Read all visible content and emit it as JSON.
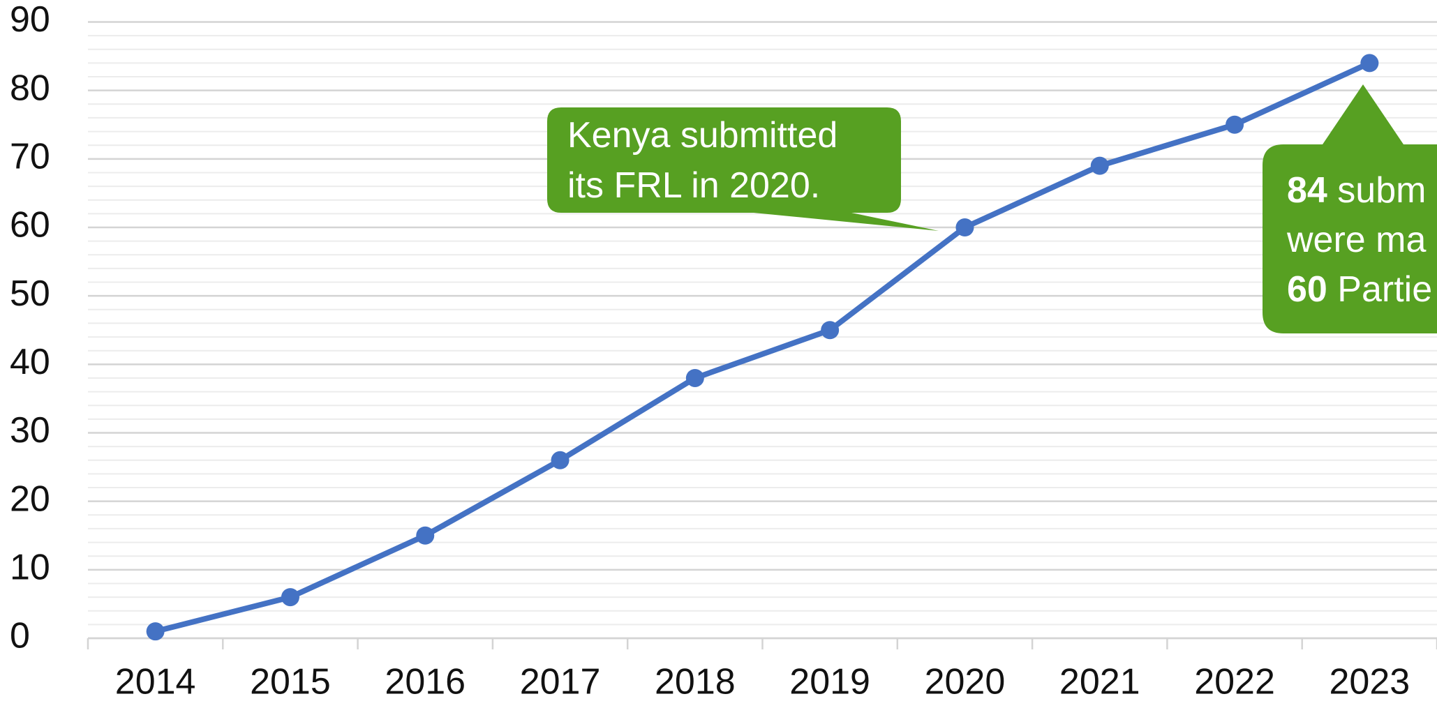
{
  "chart_data": {
    "type": "line",
    "categories": [
      "2014",
      "2015",
      "2016",
      "2017",
      "2018",
      "2019",
      "2020",
      "2021",
      "2022",
      "2023"
    ],
    "series": [
      {
        "color": "#4472c4",
        "values": [
          1,
          6,
          15,
          26,
          38,
          45,
          60,
          69,
          75,
          84
        ]
      }
    ],
    "ylim": [
      0,
      90
    ],
    "yticks": [
      0,
      10,
      20,
      30,
      40,
      50,
      60,
      70,
      80,
      90
    ],
    "grid": true,
    "minor_grid_step": 2,
    "annotations": [
      {
        "color": "#57a022",
        "lines": [
          [
            {
              "text": "Kenya submitted"
            }
          ],
          [
            {
              "text": "its FRL in 2020."
            }
          ]
        ]
      },
      {
        "color": "#57a022",
        "lines": [
          [
            {
              "text": "84",
              "bold": true
            },
            {
              "text": " subm"
            }
          ],
          [
            {
              "text": "were ma"
            }
          ],
          [
            {
              "text": "60",
              "bold": true
            },
            {
              "text": " Partie"
            }
          ]
        ]
      }
    ]
  }
}
